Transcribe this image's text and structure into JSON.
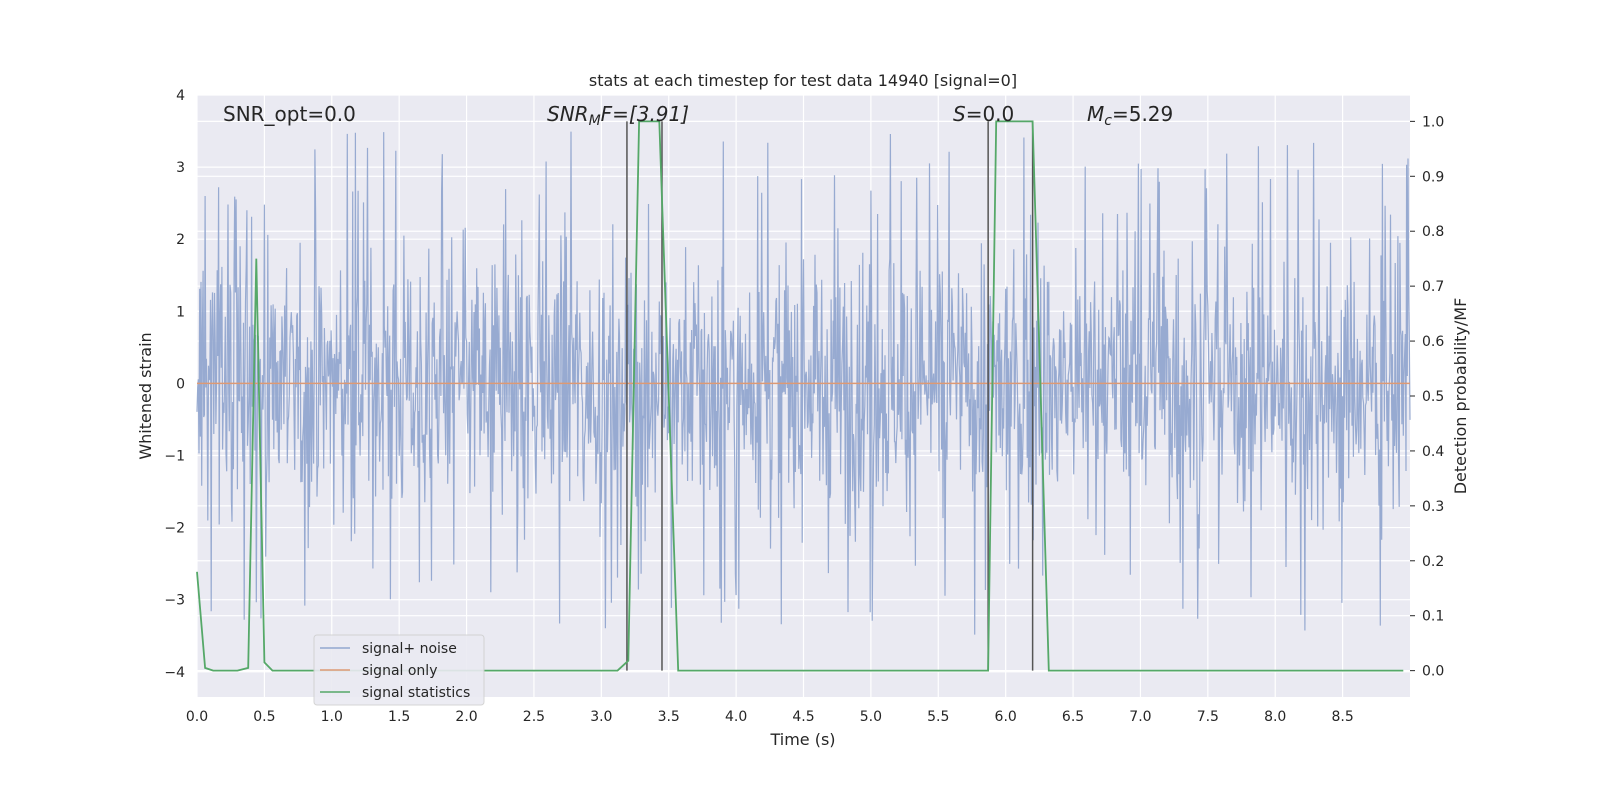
{
  "chart_data": {
    "type": "line",
    "title": "stats at each timestep for test data 14940 [signal=0]",
    "xlabel": "Time (s)",
    "ylabel_left": "Whitened strain",
    "ylabel_right": "Detection probability/MF",
    "xlim": [
      0.0,
      9.0
    ],
    "ylim_left": [
      -4.35,
      4.0
    ],
    "ylim_right": [
      -0.048,
      1.048
    ],
    "xticks": [
      "0.0",
      "0.5",
      "1.0",
      "1.5",
      "2.0",
      "2.5",
      "3.0",
      "3.5",
      "4.0",
      "4.5",
      "5.0",
      "5.5",
      "6.0",
      "6.5",
      "7.0",
      "7.5",
      "8.0",
      "8.5"
    ],
    "yticks_left": [
      "4",
      "3",
      "2",
      "1",
      "0",
      "−1",
      "−2",
      "−3",
      "−4"
    ],
    "yticks_right": [
      "1.0",
      "0.9",
      "0.8",
      "0.7",
      "0.6",
      "0.5",
      "0.4",
      "0.3",
      "0.2",
      "0.1",
      "0.0"
    ],
    "grid": true,
    "legend_position": "lower-left",
    "annotations": {
      "snr_opt": "SNR_opt=0.0",
      "snr_mf_base": "SNR",
      "snr_mf_sub": "M",
      "snr_mf_rest": "F=[3.91]",
      "s_base": "S",
      "s_rest": "=0.0",
      "mc_base": "M",
      "mc_sub": "c",
      "mc_rest": "=5.29"
    },
    "series": [
      {
        "name": "signal+ noise",
        "color": "#92a7cf",
        "axis": "left",
        "noise_envelope": {
          "typical_abs": 1.6,
          "max": 3.62,
          "min": -3.85,
          "x_range": [
            0.0,
            9.0
          ]
        }
      },
      {
        "name": "signal only",
        "color": "#dd9974",
        "axis": "left",
        "x": [
          0.0,
          9.0
        ],
        "y": [
          0.0,
          0.0
        ]
      },
      {
        "name": "signal statistics",
        "color": "#55a868",
        "axis": "right",
        "x": [
          0.0,
          0.06,
          0.12,
          0.2,
          0.3,
          0.38,
          0.44,
          0.5,
          0.56,
          0.7,
          1.0,
          2.0,
          3.0,
          3.12,
          3.2,
          3.28,
          3.43,
          3.57,
          3.7,
          5.0,
          5.87,
          5.93,
          6.2,
          6.32,
          6.5,
          7.5,
          8.95
        ],
        "y": [
          0.18,
          0.005,
          0.0,
          0.0,
          0.0,
          0.005,
          0.75,
          0.015,
          0.0,
          0.0,
          0.0,
          0.0,
          0.0,
          0.0,
          0.018,
          1.0,
          1.0,
          0.0,
          0.0,
          0.0,
          0.0,
          1.0,
          1.0,
          0.0,
          0.0,
          0.0,
          0.0
        ]
      }
    ],
    "vertical_markers": [
      {
        "x": 3.19,
        "y_range": [
          0.0,
          1.0
        ],
        "color": "#555555"
      },
      {
        "x": 3.45,
        "y_range": [
          0.0,
          1.0
        ],
        "color": "#555555"
      },
      {
        "x": 5.87,
        "y_range": [
          0.0,
          1.0
        ],
        "color": "#555555"
      },
      {
        "x": 6.2,
        "y_range": [
          0.0,
          1.0
        ],
        "color": "#555555"
      }
    ]
  },
  "colors": {
    "axes_background": "#eaeaf2",
    "grid": "#ffffff",
    "text": "#262626"
  }
}
